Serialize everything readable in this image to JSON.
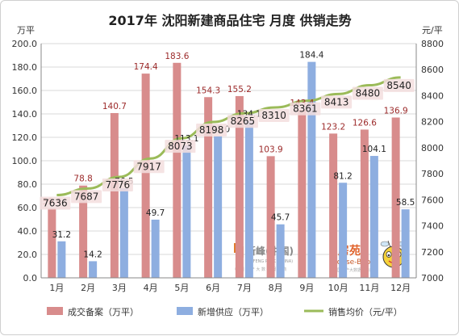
{
  "chart_data": {
    "type": "bar",
    "title": "2017年 沈阳新建商品住宅 月度 供销走势",
    "ylabel_left": "万平",
    "ylabel_right": "元/平",
    "categories": [
      "1月",
      "2月",
      "3月",
      "4月",
      "5月",
      "6月",
      "7月",
      "8月",
      "9月",
      "10月",
      "11月",
      "12月"
    ],
    "series": [
      {
        "name": "成交备案（万平）",
        "kind": "bar",
        "axis": "left",
        "color": "#d88c8c",
        "values": [
          59.4,
          78.8,
          140.7,
          174.4,
          183.6,
          154.3,
          155.2,
          103.9,
          143.4,
          123.2,
          126.6,
          136.9
        ],
        "labels": [
          "59.4",
          "78.8",
          "140.7",
          "174.4",
          "183.6",
          "154.3",
          "155.2",
          "103.9",
          "143.4",
          "123.2",
          "126.6",
          "136.9"
        ]
      },
      {
        "name": "新增供应（万平）",
        "kind": "bar",
        "axis": "left",
        "color": "#8eaee0",
        "values": [
          31.2,
          14.2,
          76.5,
          49.7,
          113.1,
          121.0,
          134.1,
          45.7,
          184.4,
          81.2,
          104.1,
          58.5
        ],
        "labels": [
          "31.2",
          "14.2",
          "76.5",
          "49.7",
          "113.1",
          "121.0",
          "134.1",
          "45.7",
          "184.4",
          "81.2",
          "104.1",
          "58.5"
        ]
      },
      {
        "name": "销售均价（元/平）",
        "kind": "line",
        "axis": "right",
        "color": "#9bbb59",
        "values": [
          7636,
          7687,
          7776,
          7917,
          8073,
          8198,
          8265,
          8310,
          8361,
          8413,
          8480,
          8540
        ],
        "labels": [
          "7636",
          "7687",
          "7776",
          "7917",
          "8073",
          "8198",
          "8265",
          "8310",
          "8361",
          "8413",
          "8480",
          "8540"
        ]
      }
    ],
    "ylim_left": [
      0,
      200
    ],
    "yticks_left": [
      "0.0",
      "20.0",
      "40.0",
      "60.0",
      "80.0",
      "100.0",
      "120.0",
      "140.0",
      "160.0",
      "180.0",
      "200.0"
    ],
    "ylim_right": [
      7000,
      8800
    ],
    "yticks_right": [
      "7000",
      "7200",
      "7400",
      "7600",
      "7800",
      "8000",
      "8200",
      "8400",
      "8600",
      "8800"
    ],
    "grid": true,
    "legend_position": "bottom"
  },
  "watermarks": {
    "xinfeng_cn": "新峰(中国)",
    "xinfeng_en": "XINFENG PEAK (CHINA)",
    "xinfeng_sub": "中 国 房 产 大 数 据 服 务 商",
    "housebook_cn": "房苑",
    "housebook_en": "House-Book",
    "housebook_sub": "中国房产大数据服务商"
  },
  "colors": {
    "title": "#222222",
    "axis_text": "#333333",
    "bar_label": "#9c2a2a",
    "line_label": "#222222",
    "label_bg": "#f3dede"
  }
}
